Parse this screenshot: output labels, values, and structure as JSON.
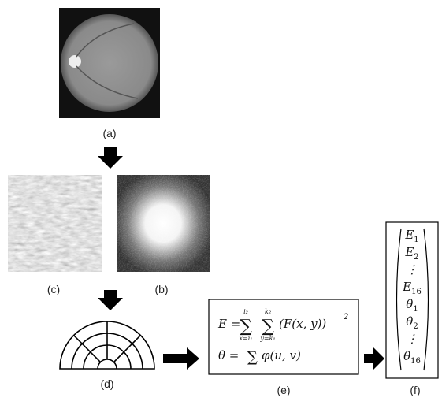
{
  "labels": {
    "a": "(a)",
    "b": "(b)",
    "c": "(c)",
    "d": "(d)",
    "e": "(e)",
    "f": "(f)"
  },
  "equations": {
    "energy": {
      "lhs": "E =",
      "sum": "∑",
      "outer_top": "i₂",
      "outer_bottom": "x=i₁",
      "inner_top": "k₂",
      "inner_bottom": "y=k₁",
      "body": "(F(x, y))",
      "power": "2"
    },
    "angle": {
      "lhs": "θ =",
      "sum": "∑",
      "body": "φ(u, v)"
    }
  },
  "vector": [
    {
      "symbol": "E",
      "sub": "1"
    },
    {
      "symbol": "E",
      "sub": "2"
    },
    {
      "symbol": "⋮",
      "sub": ""
    },
    {
      "symbol": "E",
      "sub": "16"
    },
    {
      "symbol": "θ",
      "sub": "1"
    },
    {
      "symbol": "θ",
      "sub": "2"
    },
    {
      "symbol": "⋮",
      "sub": ""
    },
    {
      "symbol": "θ",
      "sub": "16"
    }
  ]
}
